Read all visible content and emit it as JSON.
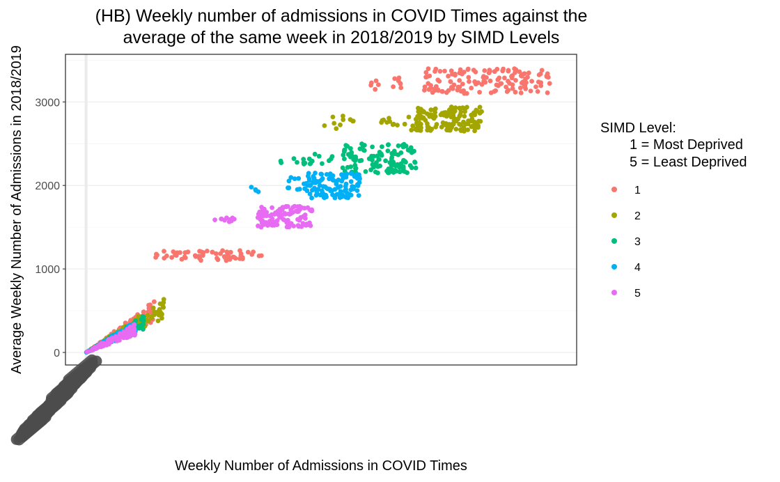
{
  "chart_data": {
    "type": "scatter",
    "title_lines": [
      "(HB) Weekly number of admissions in COVID Times against the",
      "average of the same week in 2018/2019 by SIMD Levels"
    ],
    "xlabel": "Weekly Number of Admissions in COVID Times",
    "ylabel": "Average Weekly Number of Admissions in 2018/2019",
    "ylim": [
      -150,
      3570
    ],
    "xlim": [
      -150,
      3570
    ],
    "y_ticks": [
      0,
      1000,
      2000,
      3000
    ],
    "grid": true,
    "legend_position": "right",
    "legend": {
      "title_lines": [
        "SIMD Level:",
        "1 = Most Deprived",
        "5 = Least Deprived"
      ],
      "entries": [
        "1",
        "2",
        "3",
        "4",
        "5"
      ]
    },
    "series": [
      {
        "name": "1",
        "color": "#F8766D",
        "clusters": [
          {
            "x": [
              500,
              1280
            ],
            "y": [
              1100,
              1220
            ],
            "n": 60
          },
          {
            "x": [
              1950,
              2450
            ],
            "y": [
              3150,
              3300
            ],
            "n": 12
          },
          {
            "x": [
              2450,
              3380
            ],
            "y": [
              3100,
              3400
            ],
            "n": 140
          },
          {
            "x": [
              0,
              500
            ],
            "y": [
              0,
              540
            ],
            "n": 90
          }
        ]
      },
      {
        "name": "2",
        "color": "#A3A500",
        "clusters": [
          {
            "x": [
              1680,
              1950
            ],
            "y": [
              2650,
              2840
            ],
            "n": 10
          },
          {
            "x": [
              2120,
              2450
            ],
            "y": [
              2650,
              2850
            ],
            "n": 18
          },
          {
            "x": [
              2400,
              2880
            ],
            "y": [
              2650,
              2950
            ],
            "n": 130
          },
          {
            "x": [
              0,
              580
            ],
            "y": [
              0,
              580
            ],
            "n": 100
          }
        ]
      },
      {
        "name": "3",
        "color": "#00BF7D",
        "clusters": [
          {
            "x": [
              1400,
              1600
            ],
            "y": [
              2250,
              2330
            ],
            "n": 8
          },
          {
            "x": [
              1620,
              1800
            ],
            "y": [
              2250,
              2380
            ],
            "n": 10
          },
          {
            "x": [
              1860,
              2400
            ],
            "y": [
              2150,
              2500
            ],
            "n": 120
          },
          {
            "x": [
              0,
              420
            ],
            "y": [
              0,
              400
            ],
            "n": 80
          }
        ]
      },
      {
        "name": "4",
        "color": "#00B0F6",
        "clusters": [
          {
            "x": [
              1200,
              1260
            ],
            "y": [
              1920,
              2000
            ],
            "n": 4
          },
          {
            "x": [
              1450,
              1600
            ],
            "y": [
              1950,
              2100
            ],
            "n": 10
          },
          {
            "x": [
              1600,
              2000
            ],
            "y": [
              1850,
              2150
            ],
            "n": 110
          },
          {
            "x": [
              0,
              360
            ],
            "y": [
              0,
              330
            ],
            "n": 80
          }
        ]
      },
      {
        "name": "5",
        "color": "#E76BF3",
        "clusters": [
          {
            "x": [
              900,
              1100
            ],
            "y": [
              1550,
              1620
            ],
            "n": 10
          },
          {
            "x": [
              1250,
              1650
            ],
            "y": [
              1500,
              1750
            ],
            "n": 110
          },
          {
            "x": [
              0,
              360
            ],
            "y": [
              0,
              300
            ],
            "n": 80
          }
        ]
      }
    ]
  }
}
